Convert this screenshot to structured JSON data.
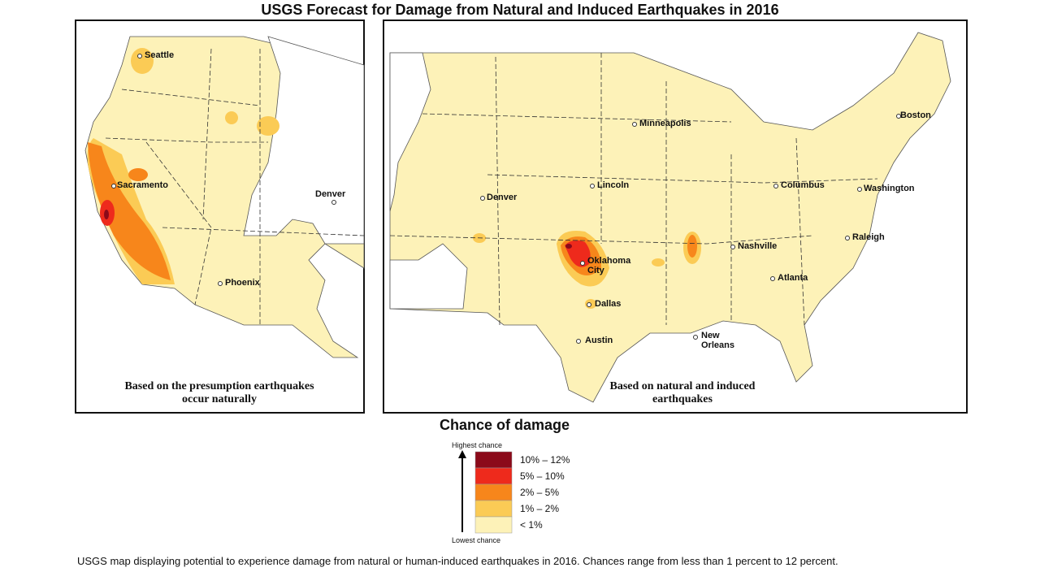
{
  "title": "USGS Forecast for Damage from Natural and Induced Earthquakes in 2016",
  "panels": [
    {
      "caption": "Based on the presumption earthquakes occur naturally",
      "cities": [
        "Seattle",
        "Sacramento",
        "Denver",
        "Phoenix"
      ]
    },
    {
      "caption": "Based on natural and induced earthquakes",
      "cities": [
        "Minneapolis",
        "Boston",
        "Lincoln",
        "Denver",
        "Columbus",
        "Washington",
        "Nashville",
        "Raleigh",
        "Oklahoma City",
        "Atlanta",
        "Dallas",
        "Austin",
        "New Orleans"
      ]
    }
  ],
  "legend": {
    "title": "Chance of damage",
    "top": "Highest chance",
    "bottom": "Lowest chance",
    "items": [
      {
        "label": "10% – 12%",
        "color": "#8b0a1a"
      },
      {
        "label": "5% – 10%",
        "color": "#ee2a1c"
      },
      {
        "label": "2% – 5%",
        "color": "#f7861b"
      },
      {
        "label": "1% – 2%",
        "color": "#fbcb55"
      },
      {
        "label": "< 1%",
        "color": "#fdf2b8"
      }
    ]
  },
  "footer": "USGS map displaying potential to experience damage from natural or human-induced earthquakes in 2016. Chances range from less than 1 percent to 12 percent."
}
